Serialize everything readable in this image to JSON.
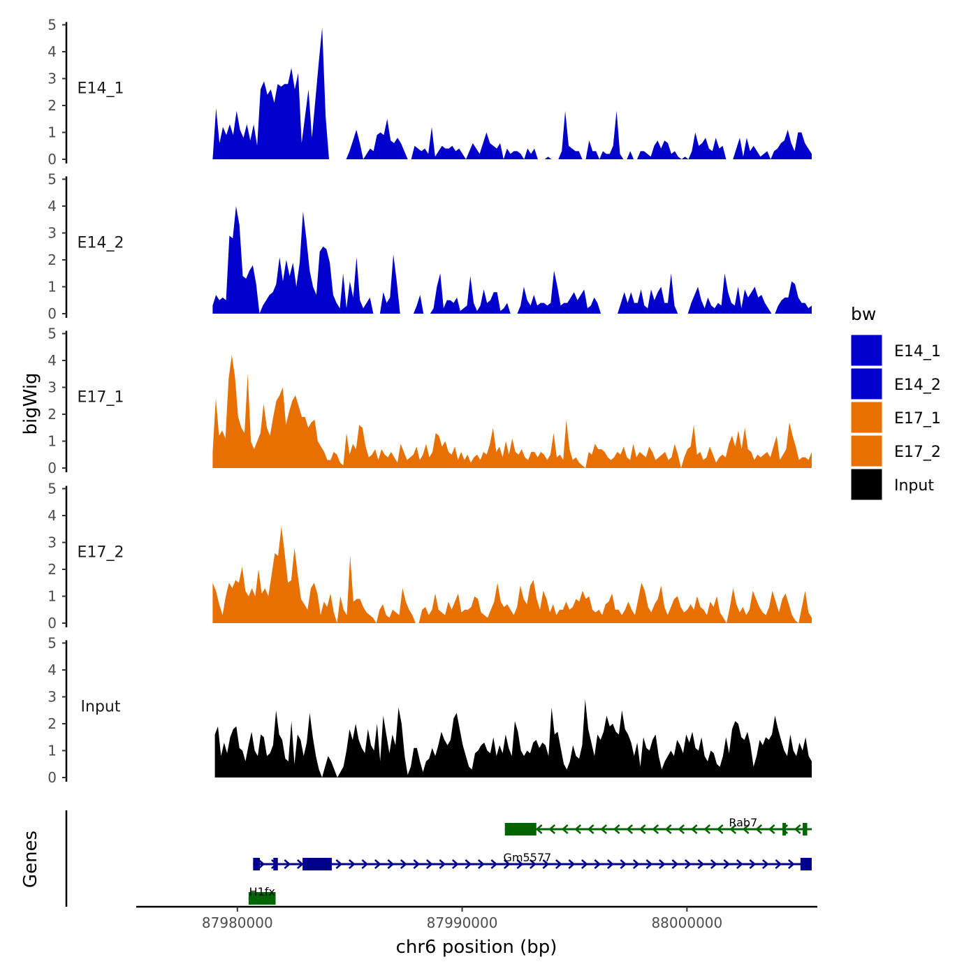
{
  "chart_data": {
    "type": "area",
    "title": "",
    "xlabel": "chr6 position (bp)",
    "ylabel": "bigWig",
    "genes_label": "Genes",
    "xlim": [
      87975500,
      88005800
    ],
    "x_ticks": [
      87980000,
      87990000,
      88000000
    ],
    "x_tick_labels": [
      "87980000",
      "87990000",
      "88000000"
    ],
    "ylim": [
      0,
      5
    ],
    "y_ticks": [
      0,
      1,
      2,
      3,
      4,
      5
    ],
    "y_tick_labels": [
      "0",
      "1",
      "2",
      "3",
      "4",
      "5"
    ],
    "legend": {
      "title": "bw",
      "position": "right",
      "entries": [
        {
          "name": "E14_1",
          "color": "#0000CD"
        },
        {
          "name": "E14_2",
          "color": "#0000CD"
        },
        {
          "name": "E17_1",
          "color": "#E87003"
        },
        {
          "name": "E17_2",
          "color": "#E87003"
        },
        {
          "name": "Input",
          "color": "#000000"
        }
      ]
    },
    "series": [
      {
        "name": "E14_1",
        "color": "#0000CD",
        "x_start": 87978900,
        "x_end": 88005550,
        "values": [
          0,
          1.9,
          0.6,
          1.2,
          0.9,
          1.3,
          0.9,
          1.8,
          1.1,
          0.8,
          1.3,
          0.7,
          1.3,
          0.5,
          2.6,
          2.9,
          2.4,
          2.6,
          2.1,
          2.8,
          2.7,
          2.8,
          2.8,
          3.4,
          2.6,
          3.2,
          0.6,
          1.6,
          2.6,
          0.8,
          2.2,
          3.6,
          4.9,
          1.6,
          0,
          0,
          0,
          0,
          0,
          0,
          0.3,
          0.7,
          1.1,
          0.6,
          0,
          0.2,
          0.4,
          0.3,
          0.9,
          1.0,
          0.9,
          1.5,
          0.7,
          0.6,
          0.8,
          0.6,
          0.3,
          0,
          0,
          0.5,
          0.4,
          0.3,
          0.4,
          0.2,
          1.2,
          0.1,
          0.3,
          0.5,
          0.4,
          0.4,
          0.5,
          0.3,
          0.4,
          0.2,
          0,
          0.3,
          0.6,
          0.4,
          0.2,
          0.6,
          1.0,
          0.6,
          0.5,
          0.4,
          0.6,
          0,
          0.4,
          0.2,
          0.3,
          0.3,
          0.2,
          0,
          0.4,
          0.2,
          0.4,
          0,
          0,
          0,
          0.1,
          0,
          0,
          0,
          0.3,
          1.8,
          0.5,
          0.4,
          0.3,
          0.3,
          0,
          0,
          0.7,
          0.3,
          0.3,
          0,
          0.3,
          0.2,
          0.2,
          0.5,
          1.8,
          0.2,
          0,
          0,
          0.3,
          0,
          0,
          0.3,
          0.3,
          0.2,
          0.1,
          0.5,
          0.7,
          0.4,
          0.7,
          0.6,
          0.2,
          0.3,
          0.1,
          0,
          0.1,
          0,
          0.3,
          1.0,
          0.5,
          0.6,
          0.8,
          0.4,
          0.3,
          0.8,
          0.4,
          0.5,
          0,
          0,
          0,
          0.4,
          0.8,
          0.1,
          0.8,
          0.3,
          0.5,
          0.3,
          0.1,
          0.2,
          0.3,
          0,
          0.3,
          0.4,
          0.6,
          0.7,
          1.1,
          0.6,
          0.3,
          1.0,
          1.0,
          0.6,
          0.4,
          0.2
        ]
      },
      {
        "name": "E14_2",
        "color": "#0000CD",
        "x_start": 87978900,
        "x_end": 88005550,
        "values": [
          0.3,
          0.7,
          0.5,
          0.6,
          0.5,
          2.9,
          2.8,
          4.0,
          3.3,
          1.4,
          1.3,
          1.6,
          1.8,
          1.1,
          0,
          0.3,
          0.5,
          0.7,
          0.8,
          1.1,
          2.1,
          1.2,
          2.0,
          1.4,
          1.9,
          1.0,
          1.9,
          3.8,
          2.8,
          1.6,
          1.0,
          0.7,
          2.3,
          2.5,
          2.4,
          1.9,
          0.7,
          0.4,
          0.2,
          1.5,
          0.2,
          1.2,
          0.6,
          2.1,
          0.5,
          0.2,
          0.4,
          0.6,
          0,
          0,
          0,
          0.8,
          0.4,
          0.6,
          2.2,
          1.2,
          0,
          0,
          0,
          0,
          0,
          0.3,
          0.7,
          0,
          0,
          0,
          0.2,
          1.0,
          1.5,
          0.2,
          0.5,
          0.5,
          0.4,
          0.6,
          0.1,
          0.2,
          0.3,
          1.4,
          0.4,
          0.1,
          0.3,
          0.9,
          0.4,
          0.5,
          0.8,
          0.8,
          0.1,
          0.2,
          0.4,
          0,
          0,
          0,
          0.3,
          1.0,
          0.5,
          0.3,
          0.7,
          0.3,
          0.4,
          0.4,
          0.3,
          0.4,
          1.6,
          1.0,
          0.3,
          0.4,
          0.4,
          0.6,
          0.8,
          0.5,
          0.7,
          0.9,
          0.2,
          0.3,
          0.6,
          0.4,
          0,
          0,
          0,
          0,
          0,
          0,
          0.4,
          0.8,
          0.4,
          0.8,
          0.4,
          0.4,
          0.9,
          0.3,
          0.2,
          0.9,
          0.5,
          0.8,
          1.0,
          0.4,
          0.4,
          1.5,
          0.3,
          0,
          0,
          0,
          0,
          0.4,
          0.7,
          1.0,
          0.5,
          0.2,
          0.6,
          0.3,
          0.2,
          0.4,
          0.3,
          1.5,
          0.8,
          0.4,
          0.3,
          1.0,
          0.2,
          0.9,
          0.6,
          0.8,
          1.0,
          0.6,
          0.7,
          0.4,
          0.2,
          0,
          0,
          0.3,
          0.5,
          0.6,
          0.6,
          1.2,
          1.1,
          0.6,
          0.4,
          0.4,
          0.2,
          0.3
        ]
      },
      {
        "name": "E17_1",
        "color": "#E87003",
        "x_start": 87978900,
        "x_end": 88005550,
        "values": [
          0.6,
          2.6,
          1.2,
          1.4,
          1.1,
          3.3,
          4.2,
          3.4,
          1.9,
          1.5,
          1.3,
          3.5,
          1.0,
          0.7,
          1.0,
          1.3,
          2.4,
          1.5,
          1.2,
          1.9,
          2.5,
          2.7,
          3.0,
          1.6,
          2.1,
          2.5,
          2.7,
          2.3,
          1.9,
          1.9,
          1.5,
          1.7,
          1.8,
          1.0,
          0.8,
          0.6,
          0.3,
          0.3,
          0.6,
          0.5,
          0.2,
          0.1,
          1.3,
          0.5,
          0.9,
          0.7,
          1.6,
          1.5,
          0.8,
          0.4,
          0.5,
          0.7,
          0.3,
          0.7,
          0.5,
          0.4,
          0.6,
          0.4,
          0.2,
          0.9,
          0.6,
          0.3,
          0.4,
          0.5,
          0.8,
          0.3,
          0.5,
          0.9,
          0.4,
          0.6,
          1.3,
          1.2,
          0.8,
          1.0,
          0.6,
          0.5,
          0.8,
          0.3,
          0.6,
          0.3,
          0.5,
          0.2,
          0.4,
          0.5,
          0.3,
          0.6,
          0.5,
          0.9,
          1.5,
          0.6,
          0.8,
          0.4,
          1.0,
          0.5,
          1.1,
          0.6,
          0.5,
          0.7,
          0.4,
          0.3,
          0.6,
          0.6,
          0.4,
          0.6,
          0.5,
          0.3,
          0.5,
          1.3,
          0.4,
          0.5,
          0.3,
          1.8,
          0.7,
          0.3,
          0.4,
          0.2,
          0.1,
          0,
          0.6,
          0.5,
          0.9,
          0.7,
          0.7,
          0.6,
          0.4,
          0.3,
          0.4,
          0.6,
          0.5,
          0.8,
          0.4,
          0.3,
          0.9,
          0.4,
          0.6,
          0.5,
          0.4,
          0.8,
          0.6,
          0.3,
          0.4,
          0.5,
          0.6,
          0.3,
          0.4,
          0.9,
          0.5,
          0,
          0.4,
          0.7,
          0.8,
          1.6,
          0.5,
          0.6,
          0.3,
          0.4,
          0.8,
          0.5,
          0.2,
          0.4,
          0.5,
          0.4,
          0.9,
          1.2,
          0.8,
          1.4,
          0.7,
          1.5,
          0.7,
          0.6,
          0.3,
          0.5,
          0.4,
          0.5,
          0.6,
          0.4,
          0.8,
          1.2,
          0.3,
          0.5,
          0.7,
          1.7,
          1.2,
          0.8,
          0.3,
          0.4,
          0.4,
          0.3,
          0.6
        ]
      },
      {
        "name": "E17_2",
        "color": "#E87003",
        "x_start": 87978900,
        "x_end": 88005550,
        "values": [
          1.5,
          1.2,
          0.7,
          0.3,
          1.0,
          1.5,
          1.3,
          1.6,
          1.5,
          2.1,
          1.2,
          1.0,
          1.3,
          1.0,
          2.0,
          1.1,
          1.3,
          1.0,
          1.8,
          2.6,
          2.5,
          3.6,
          2.6,
          1.5,
          1.6,
          2.8,
          1.8,
          0.9,
          0.7,
          0.5,
          1.3,
          1.5,
          1.1,
          0.3,
          0.8,
          0.6,
          1.1,
          0.4,
          0,
          1.0,
          0.5,
          0.3,
          2.5,
          0.8,
          0.9,
          0.9,
          0.6,
          0.4,
          0.3,
          0.2,
          0,
          0.5,
          0.7,
          0.3,
          0.2,
          0.5,
          0.4,
          0.3,
          1.3,
          0.8,
          0.5,
          0.3,
          0,
          0,
          0.5,
          0.6,
          0.3,
          0.5,
          1.1,
          0.5,
          0.4,
          0.3,
          0.8,
          0.5,
          0.8,
          1.1,
          0.4,
          0.5,
          0.5,
          0.6,
          1.0,
          0.9,
          0.4,
          0.3,
          0.2,
          0.5,
          0.8,
          1.5,
          0.8,
          0.6,
          0.7,
          0.5,
          0.3,
          0.6,
          1.4,
          0.9,
          0.7,
          1.4,
          1.6,
          0.9,
          0.5,
          1.2,
          0.9,
          0.4,
          0.7,
          0.3,
          0.5,
          0.5,
          0.8,
          0.5,
          0.6,
          0.9,
          0.8,
          1.2,
          0.9,
          1.0,
          0.5,
          0.4,
          0.5,
          0.3,
          0.7,
          0.8,
          1.1,
          0.5,
          0.5,
          0.3,
          0.5,
          0.8,
          0.5,
          0.3,
          0.9,
          1.5,
          1.2,
          0.6,
          0.4,
          0.7,
          0.9,
          1.4,
          0.6,
          0.3,
          0.6,
          0.9,
          1.0,
          0.6,
          0.4,
          0.5,
          0.7,
          0.5,
          1.0,
          0.6,
          0.5,
          0.3,
          0.8,
          0.6,
          1.0,
          0.4,
          0.2,
          0,
          0.6,
          1.3,
          0.7,
          0.4,
          0.6,
          0.3,
          0.5,
          1.2,
          0.9,
          0.6,
          0.4,
          0.3,
          0.6,
          1.2,
          0.8,
          0.4,
          0.9,
          1.1,
          0.7,
          0.3,
          0.1,
          0,
          0.6,
          1.2,
          0.4,
          0.2
        ]
      },
      {
        "name": "Input",
        "color": "#000000",
        "x_start": 87979000,
        "x_end": 88005550,
        "values": [
          1.6,
          1.9,
          0.8,
          1.3,
          0.9,
          1.5,
          1.8,
          1.9,
          1.1,
          1.0,
          0.6,
          1.2,
          1.7,
          1.0,
          0.8,
          1.6,
          1.5,
          0.8,
          0.9,
          1.2,
          2.5,
          1.6,
          1.4,
          0.7,
          0.6,
          2.1,
          0.5,
          1.6,
          1.4,
          0.8,
          1.3,
          2.4,
          1.5,
          0.8,
          0.3,
          0,
          0.4,
          0.8,
          0.6,
          0.3,
          0,
          0.2,
          0.4,
          1.0,
          1.8,
          1.4,
          2.0,
          1.4,
          1.1,
          0.9,
          1.8,
          1.2,
          1.0,
          2.0,
          0.6,
          2.3,
          1.6,
          0.9,
          1.6,
          1.2,
          2.6,
          2.0,
          0.8,
          0.1,
          0.4,
          1.1,
          1.1,
          0.6,
          0.2,
          0.6,
          0.7,
          1.1,
          0.8,
          1.2,
          1.7,
          1.4,
          1.2,
          1.4,
          2.2,
          2.4,
          1.8,
          1.2,
          0.8,
          0.4,
          0.3,
          0.9,
          1.0,
          1.2,
          1.3,
          1.0,
          0.9,
          1.5,
          0.8,
          1.2,
          0.9,
          1.6,
          1.1,
          0.8,
          2.1,
          1.7,
          1.0,
          0.8,
          1.0,
          0.9,
          1.3,
          1.4,
          1.1,
          1.3,
          1.2,
          0.8,
          2.6,
          1.6,
          1.7,
          1.1,
          0.5,
          0.3,
          0.6,
          1.2,
          0.8,
          0.7,
          1.2,
          2.9,
          1.8,
          1.3,
          0.8,
          1.6,
          1.4,
          1.7,
          2.3,
          1.9,
          2.0,
          1.7,
          1.6,
          2.5,
          1.8,
          1.6,
          1.3,
          0.8,
          1.3,
          0.4,
          1.5,
          1.1,
          1.0,
          1.4,
          1.6,
          0.8,
          0.3,
          0.6,
          0.8,
          1.0,
          0.8,
          1.4,
          1.2,
          0.9,
          1.6,
          1.3,
          1.7,
          1.1,
          1.0,
          1.5,
          0.8,
          0.6,
          1.0,
          0.9,
          0.5,
          0.4,
          0.8,
          1.5,
          0.9,
          1.8,
          2.1,
          2.0,
          1.5,
          1.4,
          1.7,
          1.2,
          0.4,
          0.8,
          1.4,
          1.2,
          1.5,
          1.4,
          1.6,
          2.3,
          1.8,
          1.4,
          1.0,
          0.8,
          1.6,
          1.0,
          0.8,
          1.3,
          1.0,
          1.5,
          0.8,
          0.6
        ]
      }
    ],
    "genes": [
      {
        "name": "Rab7",
        "strand": "-",
        "start": 87991900,
        "end": 88005550,
        "color": "#006400",
        "exons": [
          [
            87991900,
            87993300
          ],
          [
            88004250,
            88004350
          ],
          [
            88005150,
            88005350
          ]
        ]
      },
      {
        "name": "Gm5577",
        "strand": "+",
        "start": 87980700,
        "end": 88005550,
        "color": "#00008B",
        "exons": [
          [
            87980700,
            87981000
          ],
          [
            87981600,
            87981800
          ],
          [
            87982900,
            87984200
          ],
          [
            88005050,
            88005550
          ]
        ]
      },
      {
        "name": "H1fx",
        "strand": "+",
        "start": 87980500,
        "end": 87981700,
        "color": "#006400",
        "exons": [
          [
            87980500,
            87981700
          ]
        ]
      }
    ]
  }
}
